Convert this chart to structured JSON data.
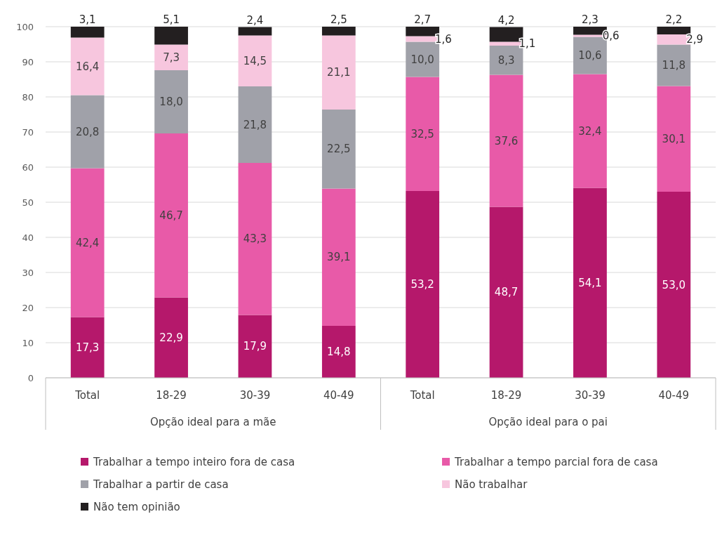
{
  "chart_data": {
    "type": "bar",
    "stacked": true,
    "categories": [
      "Total",
      "18-29",
      "30-39",
      "40-49",
      "Total",
      "18-29",
      "30-39",
      "40-49"
    ],
    "annotations": [
      "Opção ideal para a mãe",
      "Opção ideal para o pai"
    ],
    "ylim": [
      0,
      100
    ],
    "yticks": [
      0,
      10,
      20,
      30,
      40,
      50,
      60,
      70,
      80,
      90,
      100
    ],
    "grid": "y",
    "legend": "bottom",
    "series": [
      {
        "name": "Trabalhar a tempo inteiro fora de casa",
        "color": "#b5186b",
        "values": [
          17.3,
          22.9,
          17.9,
          14.8,
          53.2,
          48.7,
          54.1,
          53.0
        ],
        "value_labels": [
          "17,3",
          "22,9",
          "17,9",
          "14,8",
          "53,2",
          "48,7",
          "54,1",
          "53,0"
        ]
      },
      {
        "name": "Trabalhar a tempo parcial fora de casa",
        "color": "#e85aa8",
        "values": [
          42.4,
          46.7,
          43.3,
          39.1,
          32.5,
          37.6,
          32.4,
          30.1
        ],
        "value_labels": [
          "42,4",
          "46,7",
          "43,3",
          "39,1",
          "32,5",
          "37,6",
          "32,4",
          "30,1"
        ]
      },
      {
        "name": "Trabalhar a partir de casa",
        "color": "#a0a1a9",
        "values": [
          20.8,
          18.0,
          21.8,
          22.5,
          10.0,
          8.3,
          10.6,
          11.8
        ],
        "value_labels": [
          "20,8",
          "18,0",
          "21,8",
          "22,5",
          "10,0",
          "8,3",
          "10,6",
          "11,8"
        ]
      },
      {
        "name": "Não trabalhar",
        "color": "#f7c6de",
        "values": [
          16.4,
          7.3,
          14.5,
          21.1,
          1.6,
          1.1,
          0.6,
          2.9
        ],
        "value_labels": [
          "16,4",
          "7,3",
          "14,5",
          "21,1",
          "1,6",
          "1,1",
          "0,6",
          "2,9"
        ]
      },
      {
        "name": "Não tem opinião",
        "color": "#231f20",
        "values": [
          3.1,
          5.1,
          2.4,
          2.5,
          2.7,
          4.2,
          2.3,
          2.2
        ],
        "value_labels": [
          "3,1",
          "5,1",
          "2,4",
          "2,5",
          "2,7",
          "4,2",
          "2,3",
          "2,2"
        ]
      }
    ]
  }
}
